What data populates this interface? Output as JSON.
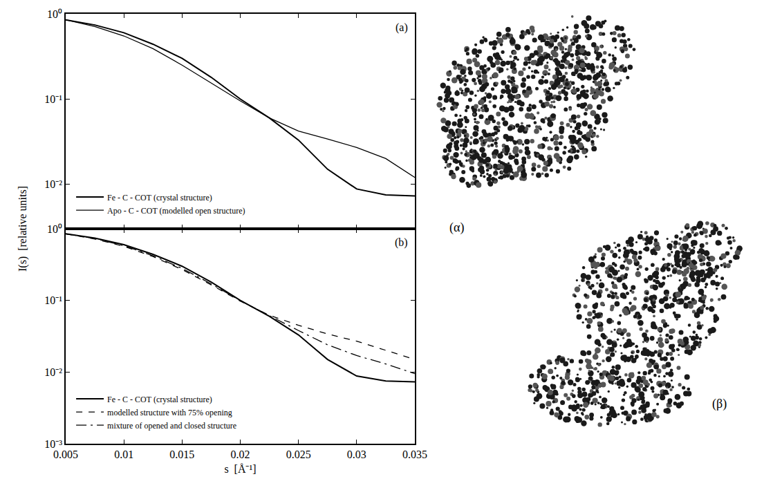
{
  "chart_data": [
    {
      "type": "line",
      "label": "(a)",
      "log": "y",
      "tick_labels": "y",
      "y_label": "I(s)  [relative units]",
      "xlim": [
        0.005,
        0.035
      ],
      "xticks": [
        0.005,
        0.01,
        0.015,
        0.02,
        0.025,
        0.03,
        0.035
      ],
      "ylim": [
        0.003,
        1
      ],
      "yticks": [
        {
          "value": 0.01,
          "label": "10⁻²"
        },
        {
          "value": 0.1,
          "label": "10⁻¹"
        },
        {
          "value": 1,
          "label": "10⁰"
        }
      ],
      "legend": "lower left",
      "x": [
        0.005,
        0.0075,
        0.01,
        0.0125,
        0.015,
        0.0175,
        0.02,
        0.0225,
        0.025,
        0.0275,
        0.03,
        0.0325,
        0.035
      ],
      "series": [
        {
          "name": "Fe - C - COT (crystal structure)",
          "color": "#000000",
          "line_style": "solid",
          "values": [
            0.85,
            0.74,
            0.6,
            0.44,
            0.3,
            0.18,
            0.1,
            0.06,
            0.033,
            0.015,
            0.0088,
            0.0075,
            0.0073
          ]
        },
        {
          "name": "Apo - C - COT (modelled open structure)",
          "color": "#000000",
          "line_style": "solid",
          "values": [
            0.85,
            0.71,
            0.55,
            0.39,
            0.25,
            0.155,
            0.095,
            0.06,
            0.042,
            0.034,
            0.027,
            0.02,
            0.012
          ]
        }
      ]
    },
    {
      "type": "line",
      "label": "(b)",
      "log": "y",
      "x_label": "s  [Å⁻¹]",
      "xlim": [
        0.005,
        0.035
      ],
      "xticks": [
        0.005,
        0.01,
        0.015,
        0.02,
        0.025,
        0.03,
        0.035
      ],
      "ylim": [
        0.001,
        1
      ],
      "yticks": [
        {
          "value": 0.001,
          "label": "10⁻³"
        },
        {
          "value": 0.01,
          "label": "10⁻²"
        },
        {
          "value": 0.1,
          "label": "10⁻¹"
        },
        {
          "value": 1,
          "label": "10⁰"
        }
      ],
      "legend": "lower left",
      "x": [
        0.005,
        0.0075,
        0.01,
        0.0125,
        0.015,
        0.0175,
        0.02,
        0.0225,
        0.025,
        0.0275,
        0.03,
        0.0325,
        0.035
      ],
      "series": [
        {
          "name": "Fe - C - COT (crystal structure)",
          "color": "#000000",
          "line_style": "solid",
          "values": [
            0.85,
            0.74,
            0.6,
            0.44,
            0.3,
            0.18,
            0.1,
            0.06,
            0.033,
            0.015,
            0.0088,
            0.0075,
            0.0073
          ]
        },
        {
          "name": "modelled structure with 75% opening",
          "color": "#000000",
          "line_style": "dash",
          "values": [
            0.85,
            0.72,
            0.57,
            0.41,
            0.27,
            0.165,
            0.098,
            0.062,
            0.045,
            0.034,
            0.027,
            0.02,
            0.015
          ]
        },
        {
          "name": "mixture of opened and closed structure",
          "color": "#000000",
          "line_style": "dashdot",
          "values": [
            0.85,
            0.73,
            0.58,
            0.42,
            0.28,
            0.17,
            0.099,
            0.061,
            0.038,
            0.024,
            0.017,
            0.013,
            0.0095
          ]
        }
      ]
    }
  ],
  "images": [
    {
      "label": "(α)"
    },
    {
      "label": "(β)"
    }
  ]
}
